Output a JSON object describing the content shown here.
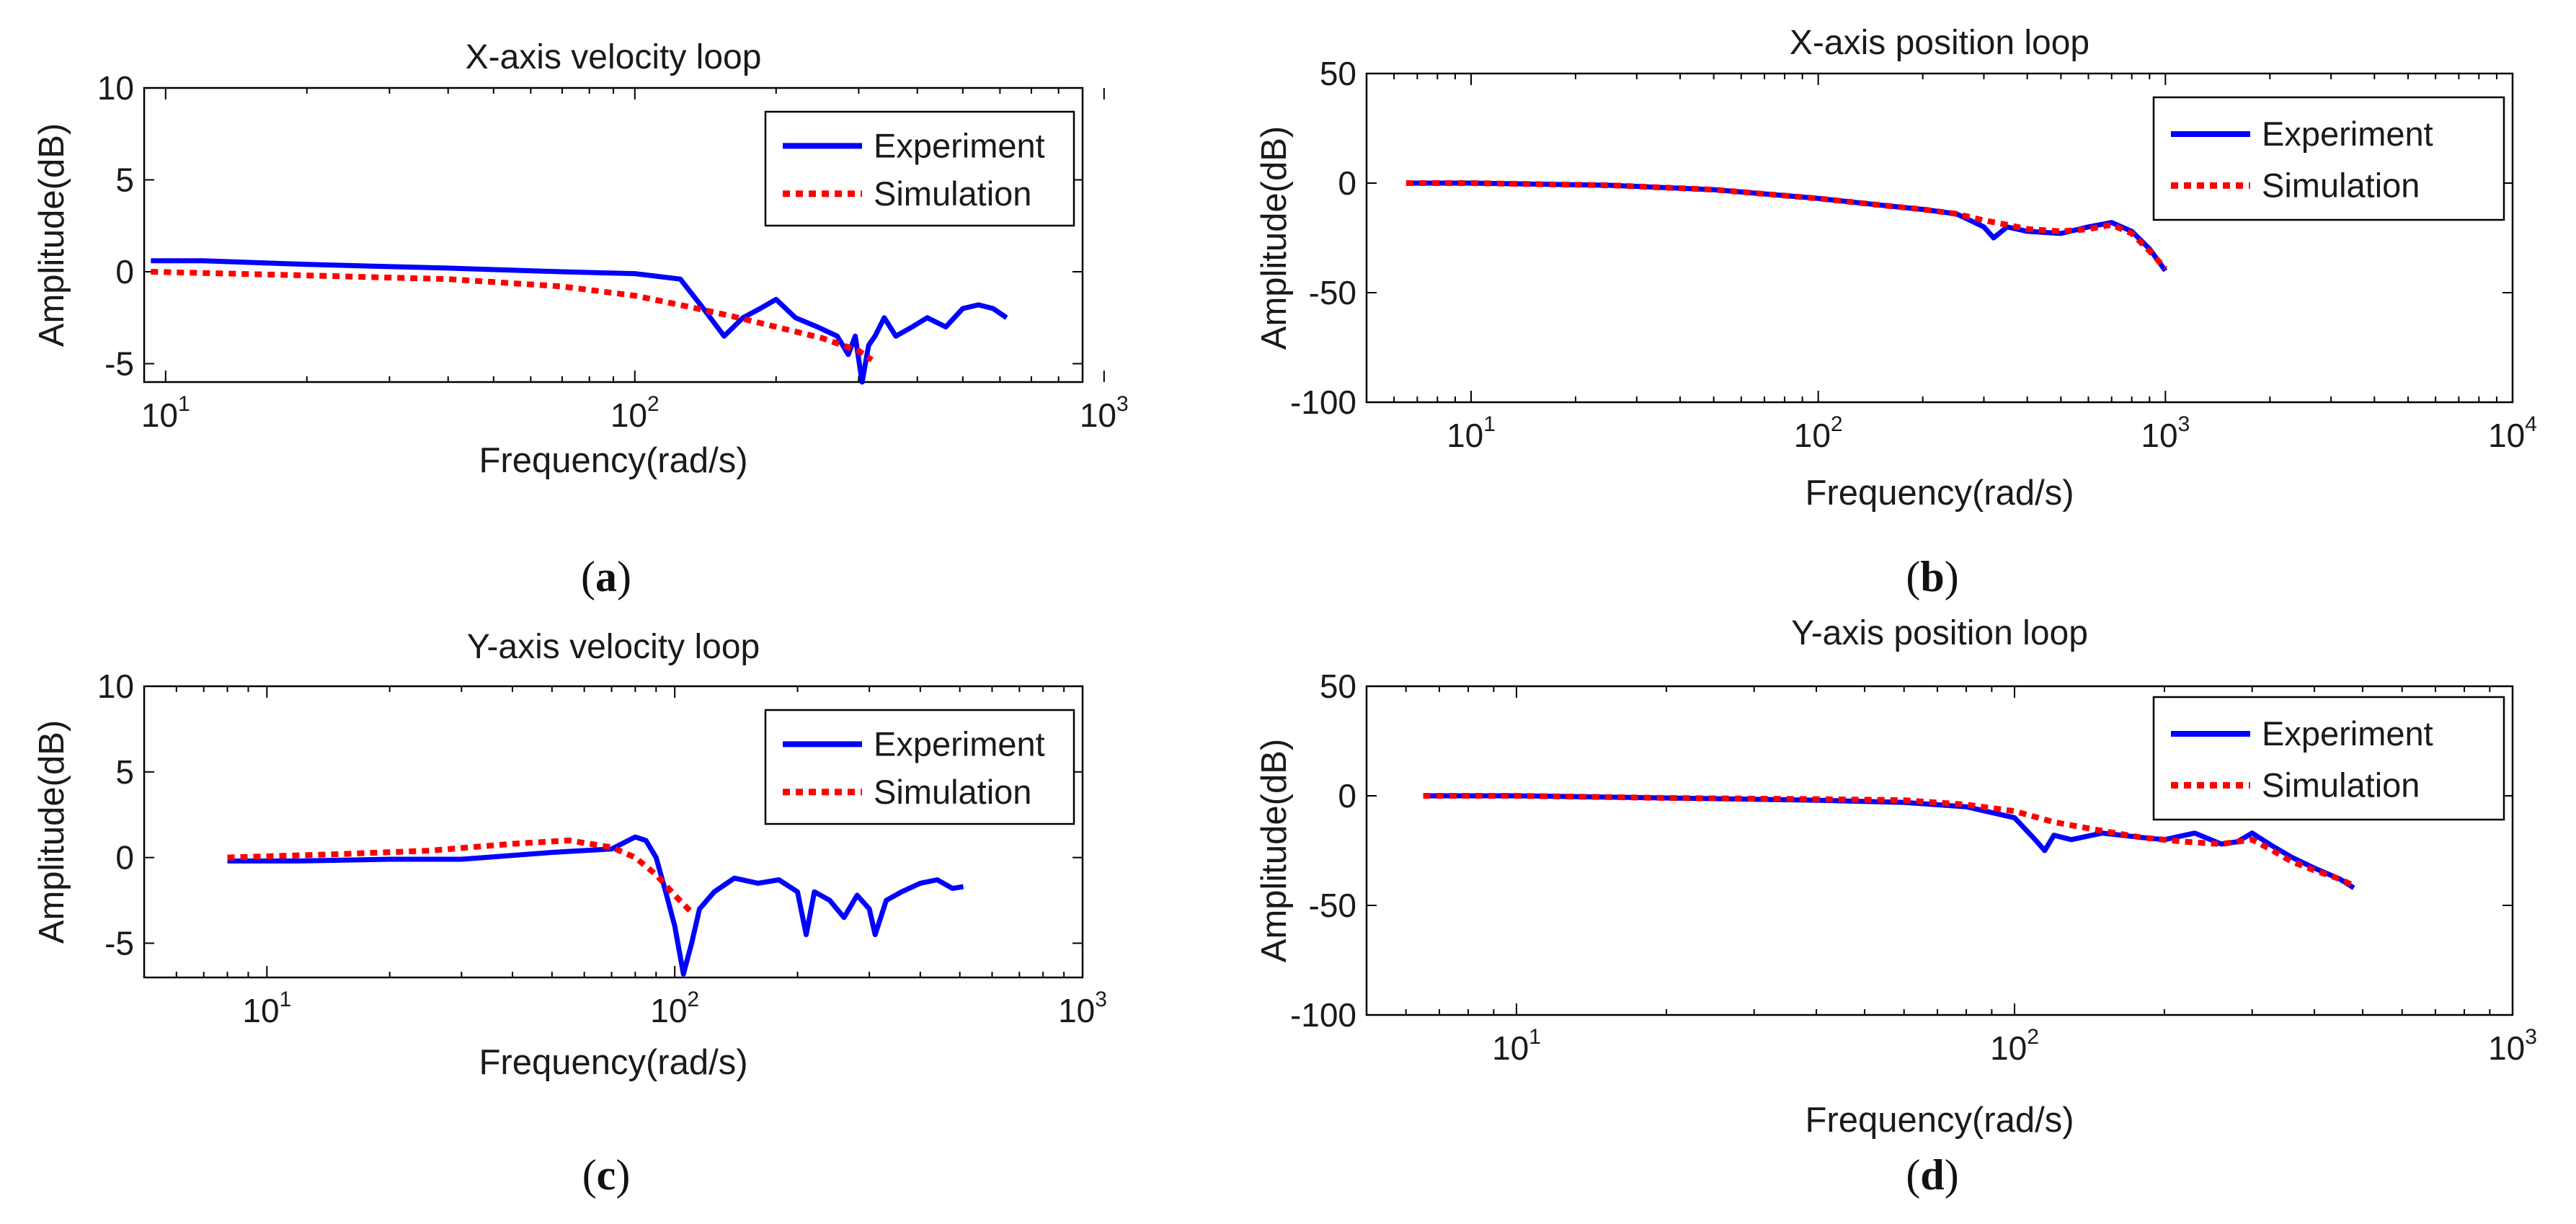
{
  "chart_data": [
    {
      "type": "line",
      "panel_label": "a",
      "title": "X-axis velocity loop",
      "xlabel": "Frequency(rad/s)",
      "ylabel": "Amplitude(dB)",
      "xscale": "log",
      "xlim": [
        9,
        900
      ],
      "ylim": [
        -6,
        10
      ],
      "xticks": [
        10,
        100,
        1000
      ],
      "xtick_labels": [
        {
          "base": "10",
          "exp": "1"
        },
        {
          "base": "10",
          "exp": "2"
        },
        {
          "base": "10",
          "exp": "3"
        }
      ],
      "yticks": [
        -5,
        0,
        5,
        10
      ],
      "legend_position": "top-right",
      "series": [
        {
          "name": "Experiment",
          "color": "#0000ff",
          "style": "solid",
          "x": [
            9.3,
            12,
            20,
            40,
            70,
            100,
            125,
            140,
            155,
            170,
            185,
            200,
            220,
            245,
            270,
            285,
            295,
            305,
            315,
            325,
            340,
            360,
            390,
            420,
            460,
            500,
            540,
            580,
            620
          ],
          "y": [
            0.6,
            0.6,
            0.4,
            0.2,
            0.0,
            -0.1,
            -0.4,
            -2.0,
            -3.5,
            -2.5,
            -2.0,
            -1.5,
            -2.5,
            -3.0,
            -3.5,
            -4.5,
            -3.5,
            -6.0,
            -4.0,
            -3.5,
            -2.5,
            -3.5,
            -3.0,
            -2.5,
            -3.0,
            -2.0,
            -1.8,
            -2.0,
            -2.5
          ]
        },
        {
          "name": "Simulation",
          "color": "#ff0000",
          "style": "dotted",
          "x": [
            9.3,
            20,
            40,
            70,
            100,
            130,
            160,
            200,
            250,
            300,
            320
          ],
          "y": [
            0.0,
            -0.2,
            -0.4,
            -0.8,
            -1.3,
            -1.9,
            -2.4,
            -3.0,
            -3.6,
            -4.3,
            -4.8
          ]
        }
      ]
    },
    {
      "type": "line",
      "panel_label": "b",
      "title": "X-axis position loop",
      "xlabel": "Frequency(rad/s)",
      "ylabel": "Amplitude(dB)",
      "xscale": "log",
      "xlim": [
        5,
        10000
      ],
      "ylim": [
        -100,
        50
      ],
      "xticks": [
        10,
        100,
        1000,
        10000
      ],
      "xtick_labels": [
        {
          "base": "10",
          "exp": "1"
        },
        {
          "base": "10",
          "exp": "2"
        },
        {
          "base": "10",
          "exp": "3"
        },
        {
          "base": "10",
          "exp": "4"
        }
      ],
      "yticks": [
        -100,
        -50,
        0,
        50
      ],
      "legend_position": "top-right",
      "series": [
        {
          "name": "Experiment",
          "color": "#0000ff",
          "style": "solid",
          "x": [
            6.5,
            10,
            25,
            50,
            100,
            150,
            200,
            250,
            300,
            320,
            350,
            400,
            500,
            600,
            700,
            800,
            900,
            1000
          ],
          "y": [
            0,
            0,
            -1,
            -3,
            -7,
            -10,
            -12,
            -14,
            -20,
            -25,
            -20,
            -22,
            -23,
            -20,
            -18,
            -22,
            -30,
            -40
          ]
        },
        {
          "name": "Simulation",
          "color": "#ff0000",
          "style": "dotted",
          "x": [
            6.5,
            10,
            25,
            50,
            100,
            150,
            200,
            250,
            300,
            350,
            400,
            500,
            600,
            700,
            800,
            900,
            1000
          ],
          "y": [
            0,
            0,
            -1,
            -3,
            -7,
            -10,
            -12,
            -14,
            -17,
            -19,
            -21,
            -22,
            -21,
            -19,
            -23,
            -31,
            -39
          ]
        }
      ]
    },
    {
      "type": "line",
      "panel_label": "c",
      "title": "Y-axis velocity loop",
      "xlabel": "Frequency(rad/s)",
      "ylabel": "Amplitude(dB)",
      "xscale": "log",
      "xlim": [
        5,
        1000
      ],
      "ylim": [
        -7,
        10
      ],
      "xticks": [
        10,
        100,
        1000
      ],
      "xtick_labels": [
        {
          "base": "10",
          "exp": "1"
        },
        {
          "base": "10",
          "exp": "2"
        },
        {
          "base": "10",
          "exp": "3"
        }
      ],
      "yticks": [
        -5,
        0,
        5,
        10
      ],
      "legend_position": "top-right",
      "series": [
        {
          "name": "Experiment",
          "color": "#0000ff",
          "style": "solid",
          "x": [
            8,
            12,
            20,
            30,
            50,
            70,
            80,
            85,
            90,
            95,
            100,
            105,
            110,
            115,
            125,
            140,
            160,
            180,
            200,
            210,
            220,
            240,
            260,
            280,
            300,
            310,
            330,
            360,
            400,
            440,
            480,
            510
          ],
          "y": [
            -0.2,
            -0.2,
            -0.1,
            -0.1,
            0.3,
            0.5,
            1.2,
            1.0,
            0.0,
            -2.0,
            -4.0,
            -6.8,
            -5.0,
            -3.0,
            -2.0,
            -1.2,
            -1.5,
            -1.3,
            -2.0,
            -4.5,
            -2.0,
            -2.5,
            -3.5,
            -2.2,
            -3.0,
            -4.5,
            -2.5,
            -2.0,
            -1.5,
            -1.3,
            -1.8,
            -1.7
          ]
        },
        {
          "name": "Simulation",
          "color": "#ff0000",
          "style": "dotted",
          "x": [
            8,
            15,
            25,
            40,
            55,
            70,
            80,
            90,
            100,
            110
          ],
          "y": [
            0.0,
            0.2,
            0.4,
            0.8,
            1.0,
            0.6,
            0.0,
            -1.0,
            -2.2,
            -3.2
          ]
        }
      ]
    },
    {
      "type": "line",
      "panel_label": "d",
      "title": "Y-axis position loop",
      "xlabel": "Frequency(rad/s)",
      "ylabel": "Amplitude(dB)",
      "xscale": "log",
      "xlim": [
        5,
        1000
      ],
      "ylim": [
        -100,
        50
      ],
      "xticks": [
        10,
        100,
        1000
      ],
      "xtick_labels": [
        {
          "base": "10",
          "exp": "1"
        },
        {
          "base": "10",
          "exp": "2"
        },
        {
          "base": "10",
          "exp": "3"
        }
      ],
      "yticks": [
        -100,
        -50,
        0,
        50
      ],
      "legend_position": "top-right",
      "series": [
        {
          "name": "Experiment",
          "color": "#0000ff",
          "style": "solid",
          "x": [
            6.5,
            10,
            20,
            40,
            60,
            80,
            100,
            110,
            115,
            120,
            130,
            150,
            180,
            200,
            230,
            260,
            280,
            300,
            330,
            360,
            400,
            450,
            480
          ],
          "y": [
            0,
            0,
            -1,
            -2,
            -3,
            -5,
            -10,
            -20,
            -25,
            -18,
            -20,
            -17,
            -19,
            -20,
            -17,
            -22,
            -21,
            -17,
            -23,
            -28,
            -33,
            -38,
            -42
          ]
        },
        {
          "name": "Simulation",
          "color": "#ff0000",
          "style": "dotted",
          "x": [
            6.5,
            10,
            20,
            40,
            60,
            80,
            100,
            120,
            150,
            180,
            220,
            260,
            300,
            330,
            360,
            400,
            450,
            480
          ],
          "y": [
            0,
            0,
            -1,
            -1.5,
            -2,
            -4,
            -7,
            -12,
            -16,
            -19,
            -21,
            -22,
            -20,
            -25,
            -30,
            -34,
            -38,
            -41
          ]
        }
      ]
    }
  ]
}
